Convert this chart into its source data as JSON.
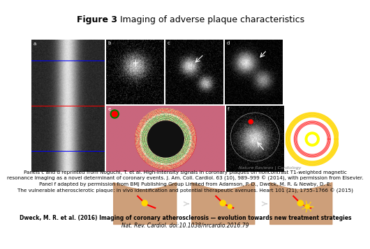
{
  "title_bold": "Figure 3",
  "title_normal": " Imaging of adverse plaque characteristics",
  "title_fontsize": 9,
  "bg_color": "#ffffff",
  "caption_text": "Panels c and d reprinted from Noguchi, T. et al. High-intensity signals in coronary plaques on noncontrast T1-weighted magnetic\nresonance imaging as a novel determinant of coronary events. J. Am. Coll. Cardiol. 63 (10), 989–999 © (2014), with permission from Elsevier.\nPanel f adapted by permission from BMJ Publishing Group Limited from Adamson, P. D., Dweck, M. R. & Newby, D. E.\nThe vulnerable atherosclerotic plaque: in vivo identification and potential therapeutic avenues. Heart 101 (21), 1755–1766 © (2015)",
  "caption_fontsize": 5.2,
  "ref_text_bold": "Dweck, M. R. et al. (2016) Imaging of coronary atherosclerosis — evolution towards new treatment strategies",
  "ref_text_normal": "Nat. Rev. Cardiol. doi:10.1038/nrcardio.2016.79",
  "ref_fontsize": 5.5,
  "nature_text": "Nature Reviews | Cardiology",
  "nature_fontsize": 4.5
}
